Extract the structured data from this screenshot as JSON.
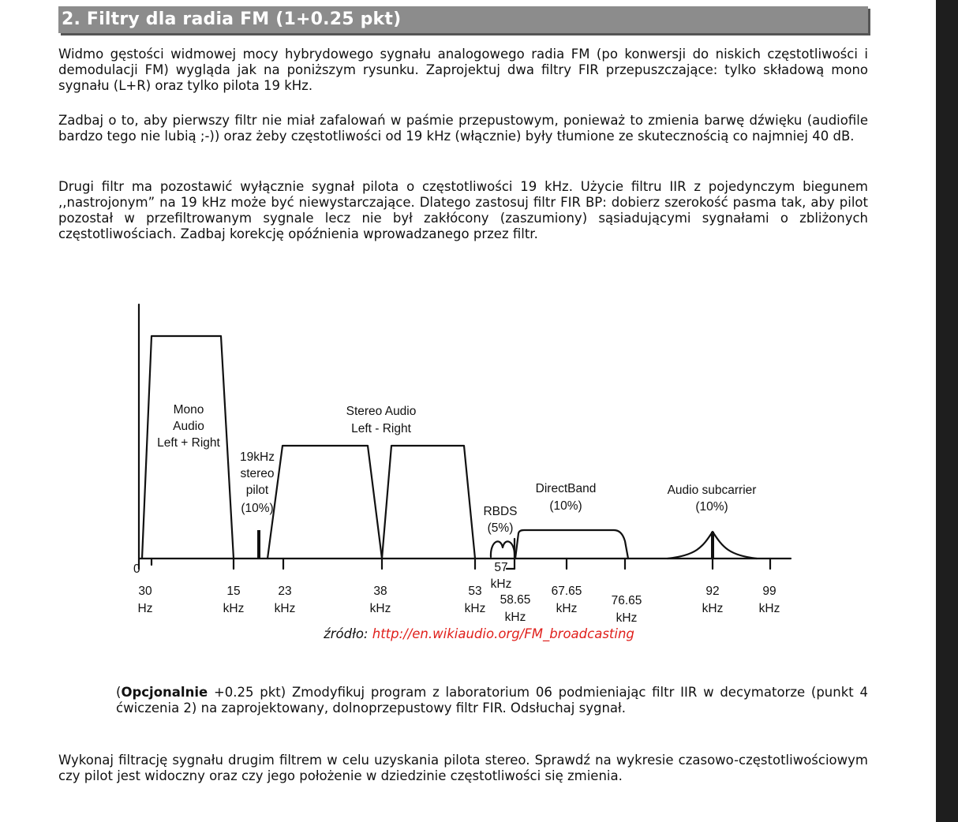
{
  "heading": "2. Filtry dla radia FM (1+0.25 pkt)",
  "paragraphs": [
    "Widmo gęstości widmowej mocy hybrydowego sygnału analogowego radia FM (po konwersji do niskich częstotliwości i demodulacji FM) wygląda jak na poniższym rysunku. Zaprojektuj dwa filtry FIR przepuszczające: tylko składową mono sygnału (L+R) oraz tylko  pilota 19 kHz.",
    "Zadbaj o to, aby pierwszy filtr nie miał zafalowań w paśmie przepustowym, ponieważ to zmienia barwę dźwięku (audiofile bardzo tego nie lubią ;-)) oraz żeby częstotliwości od 19 kHz (włącznie) były tłumione ze skutecznością co najmniej 40 dB.",
    "Drugi filtr ma pozostawić wyłącznie sygnał pilota o częstotliwości 19 kHz. Użycie filtru IIR z pojedynczym biegunem ,,nastrojonym” na 19 kHz może być niewystarczające. Dlatego zastosuj filtr FIR BP: dobierz szerokość pasma tak, aby pilot pozostał w przefiltrowanym sygnale lecz nie był zakłócony (zaszumiony) sąsiadującymi sygnałami o zbliżonych częstotliwościach. Zadbaj korekcję opóźnienia wprowadzanego przez filtr."
  ],
  "figure": {
    "zero_label": "0",
    "labels": {
      "mono": [
        "Mono",
        "Audio",
        "Left + Right"
      ],
      "pilot": [
        "19kHz",
        "stereo",
        "pilot",
        "(10%)"
      ],
      "stereo": [
        "Stereo Audio",
        "Left - Right"
      ],
      "rbds": [
        "RBDS",
        "(5%)"
      ],
      "directband": [
        "DirectBand",
        "(10%)"
      ],
      "subcarrier": [
        "Audio subcarrier",
        "(10%)"
      ]
    },
    "ticks": [
      {
        "value": "30",
        "unit": "Hz"
      },
      {
        "value": "15",
        "unit": "kHz"
      },
      {
        "value": "23",
        "unit": "kHz"
      },
      {
        "value": "38",
        "unit": "kHz"
      },
      {
        "value": "53",
        "unit": "kHz"
      },
      {
        "value": "57",
        "unit": "kHz"
      },
      {
        "value": "58.65",
        "unit": "kHz"
      },
      {
        "value": "67.65",
        "unit": "kHz"
      },
      {
        "value": "76.65",
        "unit": "kHz"
      },
      {
        "value": "92",
        "unit": "kHz"
      },
      {
        "value": "99",
        "unit": "kHz"
      }
    ]
  },
  "source": {
    "prefix": "źródło: ",
    "link": "http://en.wikiaudio.org/FM_broadcasting"
  },
  "optional": {
    "open_paren": "(",
    "bold": "Opcjonalnie",
    "text": " +0.25 pkt) Zmodyfikuj program z laboratorium 06 podmieniając filtr IIR w decymatorze (punkt 4 ćwiczenia 2) na zaprojektowany, dolnoprzepustowy filtr FIR. Odsłuchaj sygnał."
  },
  "final_paragraph": "Wykonaj filtrację sygnału drugim filtrem w celu uzyskania pilota stereo. Sprawdź na wykresie czasowo-częstotliwościowym czy pilot jest widoczny oraz czy jego położenie w dziedzinie częstotliwości się zmienia."
}
